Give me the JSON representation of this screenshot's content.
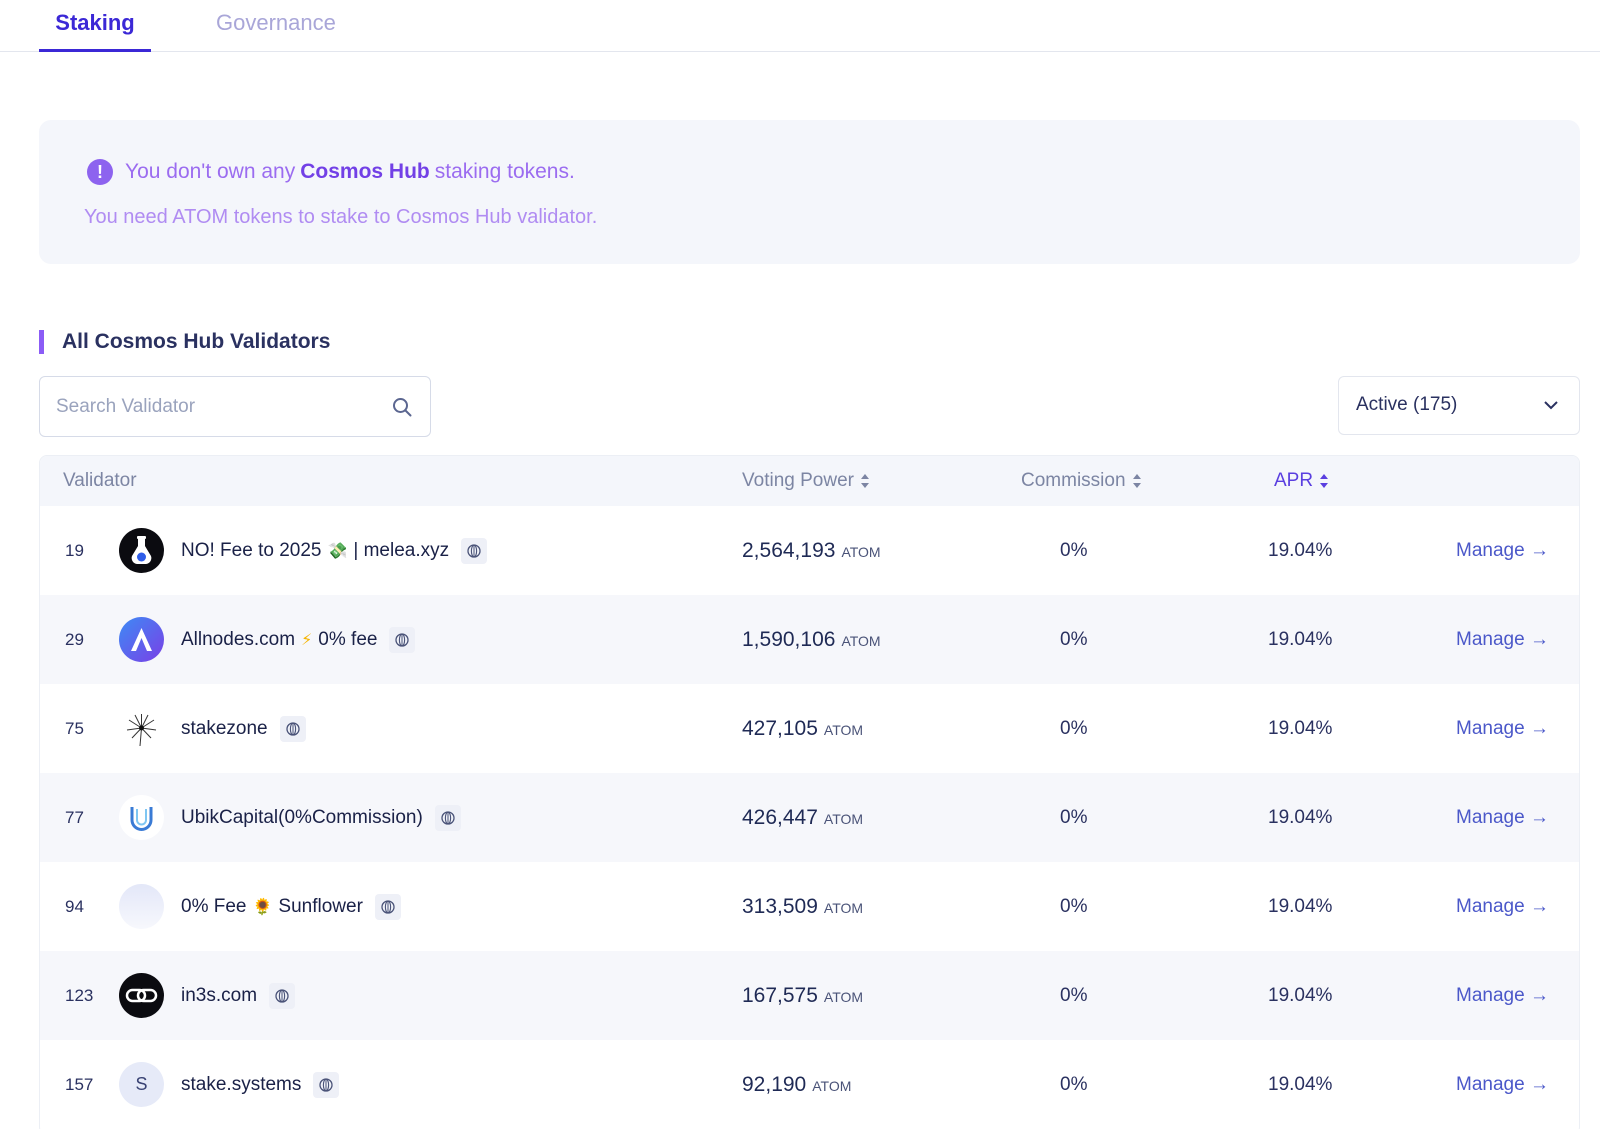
{
  "tabs": [
    {
      "label": "Staking"
    },
    {
      "label": "Governance"
    }
  ],
  "alert": {
    "icon": "exclamation-circle-icon",
    "line1_pre": "You don't own any",
    "line1_strong": "Cosmos Hub",
    "line1_post": "staking tokens.",
    "line2": "You need ATOM tokens to stake to Cosmos Hub validator."
  },
  "section": {
    "title": "All Cosmos Hub Validators"
  },
  "search": {
    "placeholder": "Search Validator",
    "icon": "search-icon"
  },
  "filter": {
    "selected": "Active (175)"
  },
  "table": {
    "headers": {
      "validator": "Validator",
      "voting_power": "Voting Power",
      "commission": "Commission",
      "apr": "APR"
    },
    "rows": [
      {
        "rank": "19",
        "name": "NO! Fee to 2025",
        "emoji": "💸",
        "name_post": "| melea.xyz",
        "voting_power": "2,564,193",
        "unit": "ATOM",
        "commission": "0%",
        "apr": "19.04%",
        "action": "Manage →"
      },
      {
        "rank": "29",
        "name": "Allnodes.com",
        "emoji": "⚡",
        "name_post": "0% fee",
        "voting_power": "1,590,106",
        "unit": "ATOM",
        "commission": "0%",
        "apr": "19.04%",
        "action": "Manage →"
      },
      {
        "rank": "75",
        "name": "stakezone",
        "emoji": "",
        "name_post": "",
        "voting_power": "427,105",
        "unit": "ATOM",
        "commission": "0%",
        "apr": "19.04%",
        "action": "Manage →"
      },
      {
        "rank": "77",
        "name": "UbikCapital(0%Commission)",
        "emoji": "",
        "name_post": "",
        "voting_power": "426,447",
        "unit": "ATOM",
        "commission": "0%",
        "apr": "19.04%",
        "action": "Manage →"
      },
      {
        "rank": "94",
        "name": "0% Fee",
        "emoji": "🌻",
        "name_post": "Sunflower",
        "voting_power": "313,509",
        "unit": "ATOM",
        "commission": "0%",
        "apr": "19.04%",
        "action": "Manage →"
      },
      {
        "rank": "123",
        "name": "in3s.com",
        "emoji": "",
        "name_post": "",
        "voting_power": "167,575",
        "unit": "ATOM",
        "commission": "0%",
        "apr": "19.04%",
        "action": "Manage →"
      },
      {
        "rank": "157",
        "name": "stake.systems",
        "emoji": "",
        "name_post": "",
        "voting_power": "92,190",
        "unit": "ATOM",
        "commission": "0%",
        "apr": "19.04%",
        "action": "Manage →",
        "avatar_letter": "S"
      }
    ]
  },
  "colors": {
    "accent": "#3b28d6",
    "alert_text": "#9b6cf0",
    "link": "#4b58c9"
  }
}
